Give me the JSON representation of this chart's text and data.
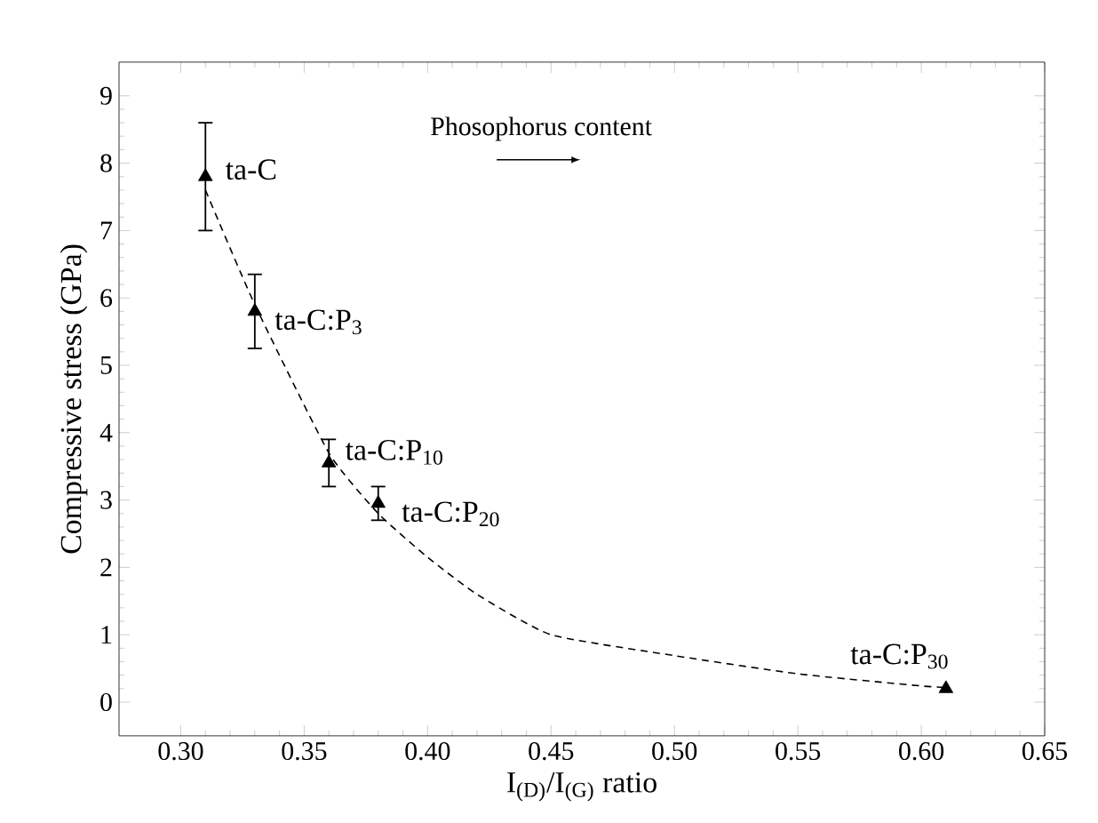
{
  "chart_data": {
    "type": "scatter",
    "xlabel": "I$_{(D)}$/I$_{(G)}$ ratio",
    "ylabel": "Compressive stress (GPa)",
    "xlim": [
      0.275,
      0.65
    ],
    "ylim": [
      -0.5,
      9.5
    ],
    "xticks": [
      {
        "value": 0.3,
        "label": "0.30"
      },
      {
        "value": 0.35,
        "label": "0.35"
      },
      {
        "value": 0.4,
        "label": "0.40"
      },
      {
        "value": 0.45,
        "label": "0.45"
      },
      {
        "value": 0.5,
        "label": "0.50"
      },
      {
        "value": 0.55,
        "label": "0.55"
      },
      {
        "value": 0.6,
        "label": "0.60"
      },
      {
        "value": 0.65,
        "label": "0.65"
      }
    ],
    "yticks": [
      0,
      1,
      2,
      3,
      4,
      5,
      6,
      7,
      8,
      9
    ],
    "grid": false,
    "marker": "triangle",
    "series": [
      {
        "color": "#000000",
        "x": [
          0.31,
          0.33,
          0.36,
          0.38,
          0.61
        ],
        "values": [
          7.8,
          5.8,
          3.55,
          2.95,
          0.2
        ],
        "errors": [
          0.8,
          0.55,
          0.35,
          0.25,
          null
        ]
      },
      {
        "type": "line",
        "color": "#000000",
        "line_style": "dashed",
        "marker": "none",
        "x": [
          0.31,
          0.33,
          0.36,
          0.38,
          0.4,
          0.42,
          0.45,
          0.5,
          0.55,
          0.6,
          0.61
        ],
        "values": [
          7.6,
          5.9,
          3.7,
          2.8,
          2.15,
          1.6,
          1.0,
          0.69,
          0.42,
          0.24,
          0.22
        ]
      }
    ],
    "annotations": [
      {
        "text": "ta-C",
        "x": 0.31,
        "y": 7.8
      },
      {
        "text": "ta-C:P$_{3}$",
        "x": 0.33,
        "y": 5.8
      },
      {
        "text": "ta-C:P$_{10}$",
        "x": 0.36,
        "y": 3.55
      },
      {
        "text": "ta-C:P$_{20}$",
        "x": 0.38,
        "y": 2.95
      },
      {
        "text": "ta-C:P$_{30}$",
        "x": 0.61,
        "y": 0.2
      },
      "Phosophorus content"
    ]
  }
}
